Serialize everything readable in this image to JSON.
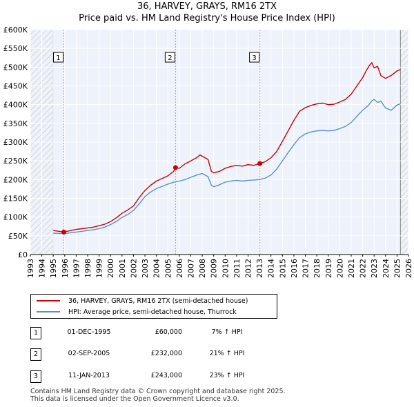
{
  "title": "36, HARVEY, GRAYS, RM16 2TX",
  "subtitle": "Price paid vs. HM Land Registry's House Price Index (HPI)",
  "colors": {
    "property": "#cc0000",
    "hpi": "#5b8fd4",
    "shade": "#eef2fa",
    "hatch": "#cccccc",
    "grid": "#ffffff",
    "marker_line": "#ee8888"
  },
  "chart_data": {
    "type": "line",
    "x_range": [
      1993,
      2026
    ],
    "ylim": [
      0,
      600000
    ],
    "y_ticks": [
      0,
      50000,
      100000,
      150000,
      200000,
      250000,
      300000,
      350000,
      400000,
      450000,
      500000,
      550000,
      600000
    ],
    "y_tick_labels": [
      "£0",
      "£50K",
      "£100K",
      "£150K",
      "£200K",
      "£250K",
      "£300K",
      "£350K",
      "£400K",
      "£450K",
      "£500K",
      "£550K",
      "£600K"
    ],
    "x_tick_labels": [
      "1993",
      "1994",
      "1995",
      "1996",
      "1997",
      "1998",
      "1999",
      "2000",
      "2001",
      "2002",
      "2003",
      "2004",
      "2005",
      "2006",
      "2007",
      "2008",
      "2009",
      "2010",
      "2011",
      "2012",
      "2013",
      "2014",
      "2015",
      "2016",
      "2017",
      "2018",
      "2019",
      "2020",
      "2021",
      "2022",
      "2023",
      "2024",
      "2025",
      "2026"
    ],
    "data_start": 1995.0,
    "data_end": 2025.3,
    "series": [
      {
        "name": "36, HARVEY, GRAYS, RM16 2TX (semi-detached house)",
        "x": [
          1995.0,
          1995.5,
          1995.92,
          1996.5,
          1997.0,
          1997.5,
          1998.0,
          1998.5,
          1999.0,
          1999.5,
          2000.0,
          2000.5,
          2001.0,
          2001.5,
          2002.0,
          2002.5,
          2003.0,
          2003.5,
          2004.0,
          2004.5,
          2005.0,
          2005.5,
          2005.67,
          2006.0,
          2006.5,
          2007.0,
          2007.5,
          2007.8,
          2008.0,
          2008.5,
          2008.8,
          2009.0,
          2009.5,
          2010.0,
          2010.5,
          2011.0,
          2011.5,
          2012.0,
          2012.5,
          2013.03,
          2013.5,
          2014.0,
          2014.5,
          2015.0,
          2015.5,
          2016.0,
          2016.5,
          2017.0,
          2017.5,
          2018.0,
          2018.5,
          2019.0,
          2019.5,
          2020.0,
          2020.5,
          2021.0,
          2021.5,
          2022.0,
          2022.3,
          2022.6,
          2022.8,
          2023.0,
          2023.3,
          2023.6,
          2024.0,
          2024.5,
          2025.0,
          2025.3
        ],
        "values": [
          64000,
          62000,
          60000,
          64000,
          67000,
          69000,
          71000,
          73000,
          77000,
          81000,
          88000,
          98000,
          110000,
          119000,
          130000,
          152000,
          171000,
          185000,
          196000,
          203000,
          210000,
          222000,
          232000,
          230000,
          242000,
          250000,
          258000,
          266000,
          262000,
          254000,
          222000,
          218000,
          222000,
          230000,
          235000,
          238000,
          236000,
          240000,
          238000,
          243000,
          248000,
          258000,
          275000,
          302000,
          330000,
          358000,
          382000,
          392000,
          398000,
          402000,
          404000,
          400000,
          401000,
          407000,
          414000,
          428000,
          450000,
          472000,
          490000,
          505000,
          512000,
          498000,
          502000,
          477000,
          470000,
          478000,
          490000,
          494000
        ]
      },
      {
        "name": "HPI: Average price, semi-detached house, Thurrock",
        "x": [
          1995.0,
          1995.5,
          1996.0,
          1996.5,
          1997.0,
          1997.5,
          1998.0,
          1998.5,
          1999.0,
          1999.5,
          2000.0,
          2000.5,
          2001.0,
          2001.5,
          2002.0,
          2002.5,
          2003.0,
          2003.5,
          2004.0,
          2004.5,
          2005.0,
          2005.5,
          2006.0,
          2006.5,
          2007.0,
          2007.5,
          2008.0,
          2008.5,
          2008.8,
          2009.0,
          2009.5,
          2010.0,
          2010.5,
          2011.0,
          2011.5,
          2012.0,
          2012.5,
          2013.0,
          2013.5,
          2014.0,
          2014.5,
          2015.0,
          2015.5,
          2016.0,
          2016.5,
          2017.0,
          2017.5,
          2018.0,
          2018.5,
          2019.0,
          2019.5,
          2020.0,
          2020.5,
          2021.0,
          2021.5,
          2022.0,
          2022.5,
          2022.8,
          2023.0,
          2023.3,
          2023.6,
          2024.0,
          2024.5,
          2025.0,
          2025.3
        ],
        "values": [
          57000,
          56500,
          56000,
          58000,
          60000,
          62000,
          64000,
          66000,
          69000,
          73000,
          80000,
          88000,
          99000,
          107000,
          118000,
          135000,
          155000,
          167000,
          176000,
          182000,
          188000,
          193000,
          196000,
          200000,
          206000,
          212000,
          216000,
          208000,
          185000,
          181000,
          186000,
          193000,
          196000,
          198000,
          196000,
          198000,
          199000,
          200000,
          204000,
          212000,
          228000,
          250000,
          272000,
          293000,
          312000,
          322000,
          327000,
          330000,
          331000,
          330000,
          331000,
          336000,
          342000,
          352000,
          369000,
          385000,
          398000,
          410000,
          414000,
          406000,
          409000,
          391000,
          385000,
          399000,
          402000
        ]
      }
    ],
    "transactions": [
      {
        "label": "1",
        "date": "01-DEC-1995",
        "price": "£60,000",
        "hpi": "7% ↑ HPI",
        "x": 1995.92,
        "value": 60000
      },
      {
        "label": "2",
        "date": "02-SEP-2005",
        "price": "£232,000",
        "hpi": "21% ↑ HPI",
        "x": 2005.67,
        "value": 232000
      },
      {
        "label": "3",
        "date": "11-JAN-2013",
        "price": "£243,000",
        "hpi": "23% ↑ HPI",
        "x": 2013.03,
        "value": 243000
      }
    ]
  },
  "footer": {
    "line1": "Contains HM Land Registry data © Crown copyright and database right 2025.",
    "line2": "This data is licensed under the Open Government Licence v3.0."
  }
}
